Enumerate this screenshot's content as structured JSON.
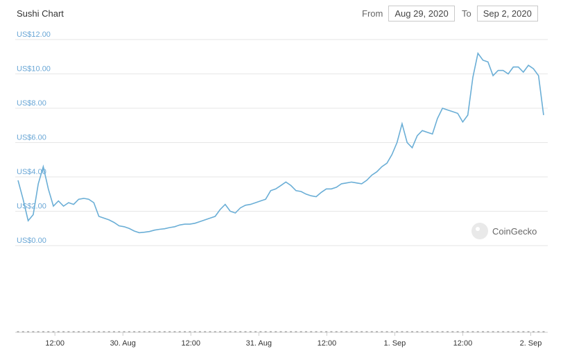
{
  "header": {
    "title": "Sushi Chart",
    "from_label": "From",
    "from_value": "Aug 29, 2020",
    "to_label": "To",
    "to_value": "Sep 2, 2020"
  },
  "watermark": "CoinGecko",
  "colors": {
    "line": "#6aaed6",
    "volume": "#8c8c8c",
    "grid": "#e6e6e6",
    "ytick": "#6aa7d6"
  },
  "chart_data": {
    "type": "line",
    "title": "Sushi Chart",
    "xlabel": "",
    "ylabel": "",
    "ylim": [
      0,
      12
    ],
    "y_ticks": [
      {
        "value": 0,
        "label": "US$0.00"
      },
      {
        "value": 2,
        "label": "US$2.00"
      },
      {
        "value": 4,
        "label": "US$4.00"
      },
      {
        "value": 6,
        "label": "US$6.00"
      },
      {
        "value": 8,
        "label": "US$8.00"
      },
      {
        "value": 10,
        "label": "US$10.00"
      },
      {
        "value": 12,
        "label": "US$12.00"
      }
    ],
    "x_unit": "hours since Aug 29, 2020 00:00",
    "xlim": [
      5,
      99
    ],
    "x_ticks": [
      {
        "value": 12,
        "label": "12:00"
      },
      {
        "value": 24,
        "label": "30. Aug"
      },
      {
        "value": 36,
        "label": "12:00"
      },
      {
        "value": 48,
        "label": "31. Aug"
      },
      {
        "value": 60,
        "label": "12:00"
      },
      {
        "value": 72,
        "label": "1. Sep"
      },
      {
        "value": 84,
        "label": "12:00"
      },
      {
        "value": 96,
        "label": "2. Sep"
      }
    ],
    "grid": true,
    "legend": "none",
    "series": [
      {
        "values": [
          3.8,
          2.7,
          1.45,
          1.8,
          3.6,
          4.6,
          3.3,
          2.3,
          2.6,
          2.3,
          2.5,
          2.4,
          2.7,
          2.75,
          2.7,
          2.5,
          1.7,
          1.6,
          1.5,
          1.35,
          1.15,
          1.1,
          1.0,
          0.85,
          0.75,
          0.78,
          0.82,
          0.9,
          0.95,
          0.98,
          1.05,
          1.1,
          1.2,
          1.25,
          1.25,
          1.3,
          1.4,
          1.5,
          1.6,
          1.7,
          2.1,
          2.4,
          2.0,
          1.9,
          2.2,
          2.35,
          2.4,
          2.5,
          2.6,
          2.7,
          3.2,
          3.3,
          3.5,
          3.7,
          3.5,
          3.2,
          3.15,
          3.0,
          2.9,
          2.85,
          3.1,
          3.3,
          3.3,
          3.4,
          3.6,
          3.65,
          3.7,
          3.65,
          3.6,
          3.8,
          4.1,
          4.3,
          4.6,
          4.8,
          5.3,
          6.0,
          7.1,
          6.0,
          5.7,
          6.4,
          6.7,
          6.6,
          6.5,
          7.4,
          8.0,
          7.9,
          7.8,
          7.7,
          7.2,
          7.6,
          9.8,
          11.2,
          10.8,
          10.7,
          9.9,
          10.2,
          10.2,
          10.0,
          10.4,
          10.4,
          10.1,
          10.5,
          10.3,
          9.9,
          7.6
        ]
      }
    ],
    "volume": {
      "max": 1.0,
      "values": [
        0,
        0,
        0,
        0,
        0,
        0,
        0,
        0,
        0,
        0,
        0,
        0,
        0,
        0,
        0,
        0,
        0,
        0,
        0,
        0,
        0,
        0,
        0,
        0,
        0,
        0,
        0,
        0,
        0,
        0,
        0,
        0,
        0,
        0,
        0,
        0,
        0,
        0,
        0,
        0,
        0,
        0,
        0,
        0,
        0,
        0,
        0,
        0,
        0,
        0,
        0,
        0,
        0,
        0,
        0,
        0,
        0,
        0,
        0,
        0,
        0,
        0,
        0,
        0,
        0,
        0,
        0,
        0,
        0,
        0,
        0,
        0,
        0,
        0,
        0,
        0,
        0,
        0,
        0,
        0,
        0,
        0,
        0,
        0,
        0,
        0,
        0,
        0,
        0,
        0,
        0,
        0,
        0,
        0,
        0,
        0,
        0,
        0,
        0,
        0,
        0,
        0,
        0,
        0,
        0
      ]
    }
  }
}
